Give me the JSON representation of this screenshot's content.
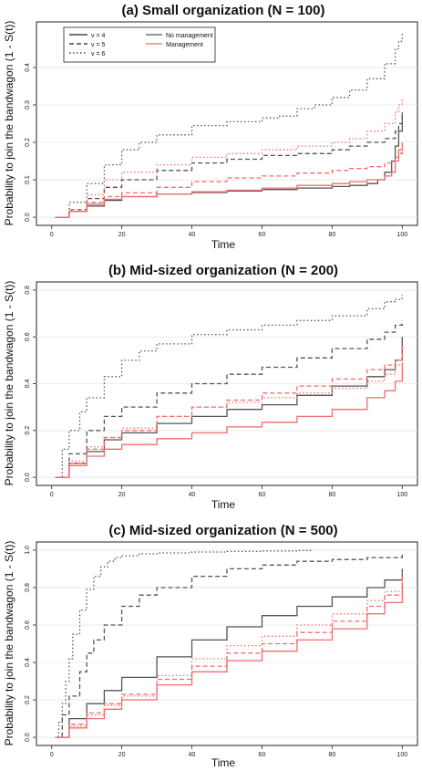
{
  "figure": {
    "xlabel": "Time",
    "ylabel": "Probability to join the bandwagon (1 - S(t))"
  },
  "legend": {
    "v_entries": [
      {
        "label": "v = 4",
        "dash": "solid"
      },
      {
        "label": "v = 5",
        "dash": "dashed"
      },
      {
        "label": "v = 6",
        "dash": "dotted"
      }
    ],
    "mgmt_entries": [
      {
        "label": "No management",
        "color": "#555555"
      },
      {
        "label": "Management",
        "color": "#f26d6d"
      }
    ]
  },
  "colors": {
    "no_management": "#555555",
    "management": "#f26d6d"
  },
  "chart_data": [
    {
      "type": "line",
      "title": "(a) Small organization (N = 100)",
      "xlabel": "Time",
      "ylabel": "Probability to join the bandwagon (1 - S(t))",
      "xlim": [
        0,
        100
      ],
      "ylim": [
        0,
        0.5
      ],
      "xticks": [
        0,
        20,
        40,
        60,
        80,
        100
      ],
      "yticks": [
        0,
        0.1,
        0.2,
        0.3,
        0.4
      ],
      "ytick_labels": [
        "0.0",
        "0.1",
        "0.2",
        "0.3",
        "0.4"
      ],
      "grid": true,
      "legend": "top-left",
      "step": true,
      "series": [
        {
          "v": 4,
          "management": false,
          "x": [
            1,
            5,
            10,
            15,
            20,
            30,
            40,
            50,
            60,
            70,
            80,
            85,
            90,
            93,
            95,
            97,
            98,
            99,
            100
          ],
          "y": [
            0,
            0.015,
            0.03,
            0.045,
            0.055,
            0.062,
            0.066,
            0.07,
            0.074,
            0.078,
            0.082,
            0.085,
            0.09,
            0.1,
            0.12,
            0.15,
            0.19,
            0.23,
            0.28
          ]
        },
        {
          "v": 4,
          "management": true,
          "x": [
            1,
            5,
            10,
            15,
            20,
            30,
            40,
            50,
            60,
            70,
            80,
            85,
            90,
            95,
            97,
            98,
            99,
            100
          ],
          "y": [
            0,
            0.015,
            0.035,
            0.048,
            0.055,
            0.062,
            0.068,
            0.072,
            0.078,
            0.085,
            0.09,
            0.095,
            0.1,
            0.11,
            0.12,
            0.15,
            0.18,
            0.2
          ]
        },
        {
          "v": 5,
          "management": false,
          "x": [
            1,
            5,
            10,
            15,
            20,
            30,
            40,
            50,
            60,
            70,
            80,
            85,
            90,
            95,
            98,
            99,
            100
          ],
          "y": [
            0,
            0.02,
            0.05,
            0.08,
            0.1,
            0.125,
            0.145,
            0.155,
            0.165,
            0.17,
            0.18,
            0.19,
            0.2,
            0.21,
            0.23,
            0.25,
            0.27
          ]
        },
        {
          "v": 5,
          "management": true,
          "x": [
            1,
            5,
            10,
            15,
            20,
            30,
            40,
            50,
            60,
            70,
            80,
            85,
            90,
            95,
            98,
            99,
            100
          ],
          "y": [
            0,
            0.015,
            0.04,
            0.055,
            0.065,
            0.08,
            0.095,
            0.105,
            0.11,
            0.118,
            0.125,
            0.13,
            0.135,
            0.145,
            0.16,
            0.17,
            0.18
          ]
        },
        {
          "v": 6,
          "management": false,
          "x": [
            1,
            5,
            10,
            15,
            20,
            25,
            30,
            40,
            50,
            60,
            65,
            70,
            75,
            80,
            85,
            90,
            95,
            98,
            99,
            100
          ],
          "y": [
            0,
            0.04,
            0.09,
            0.14,
            0.18,
            0.2,
            0.22,
            0.245,
            0.255,
            0.265,
            0.27,
            0.29,
            0.3,
            0.32,
            0.34,
            0.37,
            0.41,
            0.45,
            0.47,
            0.49
          ]
        },
        {
          "v": 6,
          "management": true,
          "x": [
            1,
            5,
            10,
            15,
            20,
            30,
            40,
            50,
            60,
            70,
            80,
            85,
            90,
            95,
            98,
            99,
            100
          ],
          "y": [
            0,
            0.02,
            0.06,
            0.1,
            0.12,
            0.14,
            0.16,
            0.17,
            0.18,
            0.19,
            0.2,
            0.21,
            0.23,
            0.25,
            0.28,
            0.3,
            0.32
          ]
        }
      ]
    },
    {
      "type": "line",
      "title": "(b) Mid-sized organization (N = 200)",
      "xlabel": "Time",
      "ylabel": "Probability to join the bandwagon (1 - S(t))",
      "xlim": [
        0,
        100
      ],
      "ylim": [
        0,
        0.8
      ],
      "xticks": [
        0,
        20,
        40,
        60,
        80,
        100
      ],
      "yticks": [
        0,
        0.2,
        0.4,
        0.6,
        0.8
      ],
      "ytick_labels": [
        "0.0",
        "0.2",
        "0.4",
        "0.6",
        "0.8"
      ],
      "grid": true,
      "legend": "none",
      "step": true,
      "series": [
        {
          "v": 4,
          "management": false,
          "x": [
            1,
            5,
            10,
            15,
            20,
            30,
            40,
            50,
            60,
            70,
            80,
            90,
            95,
            98,
            100
          ],
          "y": [
            0,
            0.06,
            0.11,
            0.16,
            0.19,
            0.23,
            0.26,
            0.29,
            0.31,
            0.35,
            0.39,
            0.43,
            0.46,
            0.5,
            0.6
          ]
        },
        {
          "v": 4,
          "management": true,
          "x": [
            1,
            5,
            10,
            15,
            20,
            30,
            40,
            50,
            60,
            70,
            80,
            90,
            95,
            98,
            100
          ],
          "y": [
            0,
            0.05,
            0.09,
            0.12,
            0.14,
            0.165,
            0.19,
            0.215,
            0.235,
            0.26,
            0.29,
            0.34,
            0.37,
            0.41,
            0.49
          ]
        },
        {
          "v": 5,
          "management": false,
          "x": [
            1,
            5,
            10,
            15,
            20,
            30,
            40,
            50,
            60,
            70,
            80,
            90,
            95,
            98,
            100
          ],
          "y": [
            0,
            0.1,
            0.2,
            0.26,
            0.3,
            0.36,
            0.4,
            0.44,
            0.47,
            0.51,
            0.55,
            0.59,
            0.62,
            0.65,
            0.67
          ]
        },
        {
          "v": 5,
          "management": true,
          "x": [
            1,
            5,
            10,
            15,
            20,
            30,
            40,
            50,
            60,
            70,
            80,
            90,
            95,
            98,
            100
          ],
          "y": [
            0,
            0.06,
            0.12,
            0.17,
            0.2,
            0.26,
            0.3,
            0.33,
            0.36,
            0.39,
            0.42,
            0.46,
            0.48,
            0.5,
            0.56
          ]
        },
        {
          "v": 6,
          "management": false,
          "x": [
            1,
            3,
            5,
            8,
            10,
            15,
            20,
            25,
            30,
            40,
            50,
            60,
            70,
            80,
            90,
            95,
            98,
            100
          ],
          "y": [
            0,
            0.12,
            0.2,
            0.28,
            0.34,
            0.43,
            0.5,
            0.54,
            0.57,
            0.61,
            0.63,
            0.65,
            0.67,
            0.69,
            0.72,
            0.75,
            0.76,
            0.78
          ]
        },
        {
          "v": 6,
          "management": true,
          "x": [
            1,
            5,
            10,
            15,
            20,
            30,
            40,
            50,
            60,
            70,
            80,
            90,
            95,
            98,
            100
          ],
          "y": [
            0,
            0.07,
            0.13,
            0.17,
            0.21,
            0.26,
            0.3,
            0.32,
            0.34,
            0.36,
            0.38,
            0.41,
            0.44,
            0.48,
            0.52
          ]
        }
      ]
    },
    {
      "type": "line",
      "title": "(c) Mid-sized organization (N = 500)",
      "xlabel": "Time",
      "ylabel": "Probability to join the bandwagon (1 - S(t))",
      "xlim": [
        0,
        100
      ],
      "ylim": [
        0,
        1.0
      ],
      "xticks": [
        0,
        20,
        40,
        60,
        80,
        100
      ],
      "yticks": [
        0,
        0.2,
        0.4,
        0.6,
        0.8,
        1.0
      ],
      "ytick_labels": [
        "0.0",
        "0.2",
        "0.4",
        "0.6",
        "0.8",
        "1.0"
      ],
      "grid": true,
      "legend": "none",
      "step": true,
      "series": [
        {
          "v": 4,
          "management": false,
          "x": [
            1,
            5,
            10,
            15,
            20,
            30,
            40,
            50,
            60,
            70,
            80,
            90,
            95,
            100
          ],
          "y": [
            0,
            0.1,
            0.18,
            0.25,
            0.32,
            0.43,
            0.52,
            0.59,
            0.65,
            0.7,
            0.75,
            0.8,
            0.84,
            0.9
          ]
        },
        {
          "v": 4,
          "management": true,
          "x": [
            1,
            5,
            10,
            15,
            20,
            30,
            40,
            50,
            60,
            70,
            80,
            90,
            95,
            100
          ],
          "y": [
            0,
            0.05,
            0.1,
            0.15,
            0.2,
            0.28,
            0.35,
            0.41,
            0.46,
            0.52,
            0.58,
            0.66,
            0.72,
            0.83
          ]
        },
        {
          "v": 5,
          "management": false,
          "x": [
            1,
            3,
            5,
            8,
            10,
            12,
            15,
            20,
            25,
            30,
            40,
            50,
            60,
            70,
            80,
            90,
            100
          ],
          "y": [
            0,
            0.12,
            0.22,
            0.35,
            0.45,
            0.52,
            0.6,
            0.7,
            0.76,
            0.8,
            0.86,
            0.9,
            0.92,
            0.94,
            0.95,
            0.96,
            0.98
          ]
        },
        {
          "v": 5,
          "management": true,
          "x": [
            1,
            5,
            10,
            15,
            20,
            30,
            40,
            50,
            60,
            70,
            80,
            90,
            95,
            100
          ],
          "y": [
            0,
            0.07,
            0.13,
            0.18,
            0.23,
            0.31,
            0.38,
            0.45,
            0.5,
            0.56,
            0.62,
            0.7,
            0.76,
            0.86
          ]
        },
        {
          "v": 6,
          "management": false,
          "x": [
            1,
            2,
            3,
            4,
            5,
            6,
            8,
            10,
            12,
            14,
            16,
            18,
            20,
            25,
            30,
            40,
            50,
            60,
            70,
            74
          ],
          "y": [
            0,
            0.08,
            0.18,
            0.3,
            0.42,
            0.55,
            0.68,
            0.79,
            0.86,
            0.91,
            0.94,
            0.96,
            0.97,
            0.98,
            0.985,
            0.99,
            0.993,
            0.995,
            0.998,
            1.0
          ]
        },
        {
          "v": 6,
          "management": true,
          "x": [
            1,
            5,
            10,
            15,
            20,
            30,
            40,
            50,
            60,
            70,
            80,
            90,
            95,
            100
          ],
          "y": [
            0,
            0.06,
            0.12,
            0.17,
            0.22,
            0.33,
            0.42,
            0.49,
            0.54,
            0.6,
            0.66,
            0.73,
            0.78,
            0.88
          ]
        }
      ]
    }
  ]
}
